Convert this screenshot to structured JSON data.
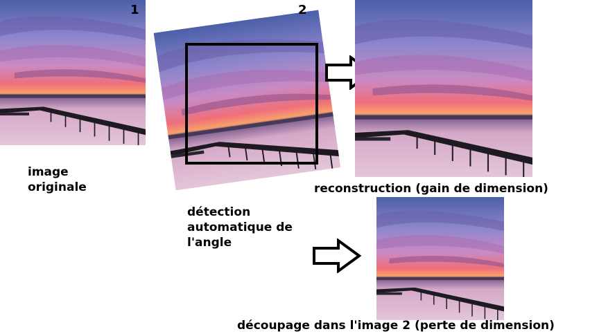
{
  "step_numbers": {
    "original": "1",
    "rotated": "2"
  },
  "labels": {
    "original": "image\noriginale",
    "detection": "détection\nautomatique de\nl'angle",
    "reconstruction": "reconstruction (gain de dimension)",
    "crop": "découpage dans l'image 2 (perte de dimension)"
  },
  "colors": {
    "sky_top": "#5b6fb8",
    "sky_mid": "#c47ab8",
    "sunset": "#f05a5a",
    "water": "#d9b8cf",
    "pier": "#1e1a22",
    "frame": "#000000"
  }
}
